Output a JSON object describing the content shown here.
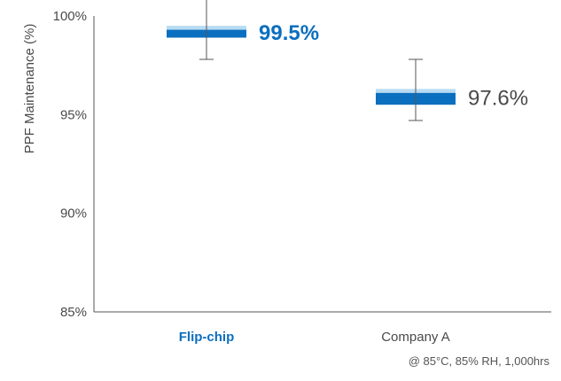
{
  "chart_data": {
    "type": "box",
    "ylabel": "PPF Maintenance (%)",
    "ylim": [
      85,
      100
    ],
    "yticks": [
      {
        "value": 100,
        "label": "100%"
      },
      {
        "value": 95,
        "label": "95%"
      },
      {
        "value": 90,
        "label": "90%"
      },
      {
        "value": 85,
        "label": "85%"
      }
    ],
    "categories": [
      "Flip-chip",
      "Company A"
    ],
    "series": [
      {
        "category": "Flip-chip",
        "label": "99.5%",
        "whisker_low": 97.8,
        "q1": 98.9,
        "median": 99.3,
        "q3": 99.5,
        "whisker_high": 101.3,
        "dark_color": "#0b6fbf",
        "light_color": "#b8dcf2",
        "label_color": "#0b6fbf",
        "category_color": "#0b6fbf",
        "label_bold": true
      },
      {
        "category": "Company A",
        "label": "97.6%",
        "whisker_low": 94.7,
        "q1": 95.5,
        "median": 96.1,
        "q3": 96.3,
        "whisker_high": 97.8,
        "dark_color": "#0b6fbf",
        "light_color": "#b8dcf2",
        "label_color": "#4a4a4a",
        "category_color": "#4a4a4a",
        "label_bold": false
      }
    ],
    "footnote": "@ 85°C, 85% RH, 1,000hrs",
    "grid": false
  }
}
